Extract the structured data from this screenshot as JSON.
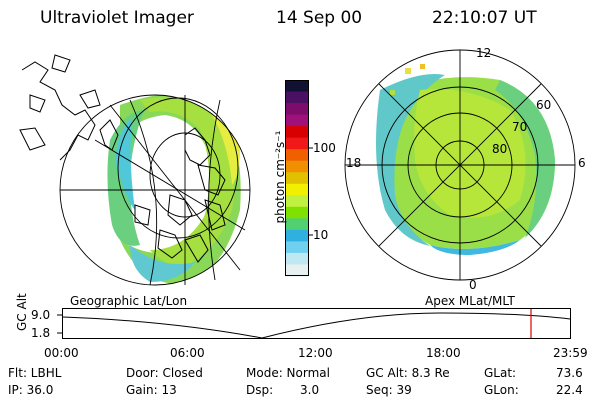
{
  "header": {
    "title": "Ultraviolet Imager",
    "date": "14 Sep 00",
    "time": "22:10:07 UT"
  },
  "colorbar": {
    "axis_label": "photon cm⁻²s⁻¹",
    "ticks": [
      "100",
      "10"
    ],
    "colors": [
      "#111133",
      "#4a1064",
      "#7d0c6a",
      "#a0107a",
      "#d80000",
      "#f01818",
      "#f06000",
      "#f09000",
      "#e0c000",
      "#f0f000",
      "#c0f040",
      "#80e000",
      "#50d070",
      "#30b0e0",
      "#70d0f0",
      "#c0e8f0",
      "#e8f0f0"
    ]
  },
  "polar_plot": {
    "lat_labels": [
      "60",
      "70",
      "80"
    ],
    "mlt_labels": [
      "12",
      "18",
      "6",
      "0"
    ]
  },
  "maps": {
    "left_caption": "Geographic Lat/Lon",
    "right_caption": "Apex  MLat/MLT"
  },
  "timeline": {
    "axis_label": "GC Alt",
    "y_ticks": [
      "9.0",
      "1.8"
    ],
    "x_ticks": [
      "00:00",
      "06:00",
      "12:00",
      "18:00",
      "23:59"
    ],
    "marker_time": "22:10"
  },
  "info": {
    "flt": "Flt: LBHL",
    "ip": "IP: 36.0",
    "door": "Door: Closed",
    "gain": "Gain: 13",
    "mode": "Mode: Normal",
    "dsp_label": "Dsp:",
    "dsp_value": "3.0",
    "gc_alt": "GC Alt: 8.3 Re",
    "seq": "Seq: 39",
    "glat_label": "GLat:",
    "glat_value": "73.6",
    "glon_label": "GLon:",
    "glon_value": "22.4"
  },
  "accent_marker_color": "#e00000"
}
